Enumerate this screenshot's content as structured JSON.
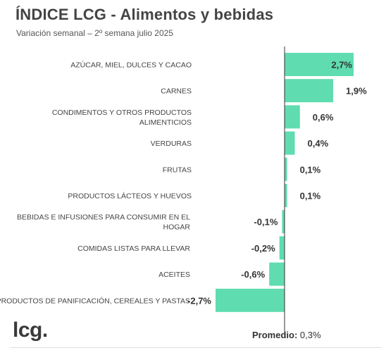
{
  "header": {
    "title": "ÍNDICE LCG - Alimentos y bebidas",
    "subtitle": "Variación semanal – 2º semana julio 2025"
  },
  "footer": {
    "logo": "lcg.",
    "average_label": "Promedio:",
    "average_value": "0,3%"
  },
  "colors": {
    "bar": "#5fdcb0",
    "axis": "#333333"
  },
  "chart_data": {
    "type": "bar",
    "orientation": "horizontal",
    "title": "ÍNDICE LCG - Alimentos y bebidas",
    "subtitle": "Variación semanal – 2º semana julio 2025",
    "unit": "%",
    "categories": [
      [
        "AZÚCAR, MIEL, DULCES Y CACAO"
      ],
      [
        "CARNES"
      ],
      [
        "CONDIMENTOS Y OTROS PRODUCTOS",
        "ALIMENTICIOS"
      ],
      [
        "VERDURAS"
      ],
      [
        "FRUTAS"
      ],
      [
        "PRODUCTOS LÁCTEOS Y HUEVOS"
      ],
      [
        "BEBIDAS E INFUSIONES PARA CONSUMIR EN EL",
        "HOGAR"
      ],
      [
        "COMIDAS LISTAS PARA LLEVAR"
      ],
      [
        "ACEITES"
      ],
      [
        "PRODUCTOS DE PANIFICACIÓN, CEREALES Y PASTAS"
      ]
    ],
    "values": [
      2.7,
      1.9,
      0.6,
      0.4,
      0.1,
      0.1,
      -0.1,
      -0.2,
      -0.6,
      -2.7
    ],
    "value_labels": [
      "2,7%",
      "1,9%",
      "0,6%",
      "0,4%",
      "0,1%",
      "0,1%",
      "-0,1%",
      "-0,2%",
      "-0,6%",
      "-2,7%"
    ],
    "xlim": [
      -2.7,
      2.7
    ],
    "grid": false,
    "legend": "none"
  }
}
